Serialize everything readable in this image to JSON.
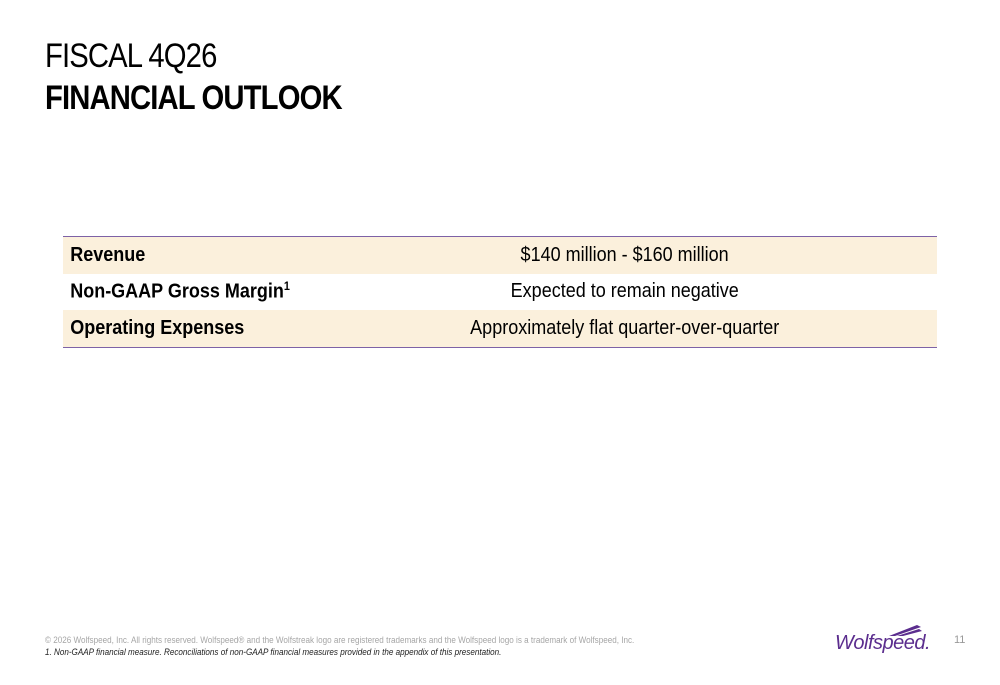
{
  "slide": {
    "title_line1": "FISCAL 4Q26",
    "title_line2": "FINANCIAL OUTLOOK"
  },
  "outlook_table": {
    "rows": [
      {
        "label": "Revenue",
        "superscript": "",
        "value": "$140 million - $160 million"
      },
      {
        "label": "Non-GAAP Gross Margin",
        "superscript": "1",
        "value": "Expected to remain negative"
      },
      {
        "label": "Operating Expenses",
        "superscript": "",
        "value": "Approximately flat quarter-over-quarter"
      }
    ]
  },
  "footer": {
    "copyright": "© 2026 Wolfspeed, Inc. All rights reserved. Wolfspeed® and the Wolfstreak logo are registered trademarks and the Wolfspeed logo is a trademark of Wolfspeed, Inc.",
    "footnote": "1. Non-GAAP financial measure. Reconciliations of non-GAAP financial measures provided in the appendix of this presentation.",
    "logo_text": "Wolfspeed.",
    "page_number": "11"
  },
  "colors": {
    "accent": "#5b2d8e",
    "row_shade": "#fbf0dc",
    "table_rule": "#7d62a6"
  },
  "icons": {
    "logo": "wolfstreak-logo-icon"
  }
}
